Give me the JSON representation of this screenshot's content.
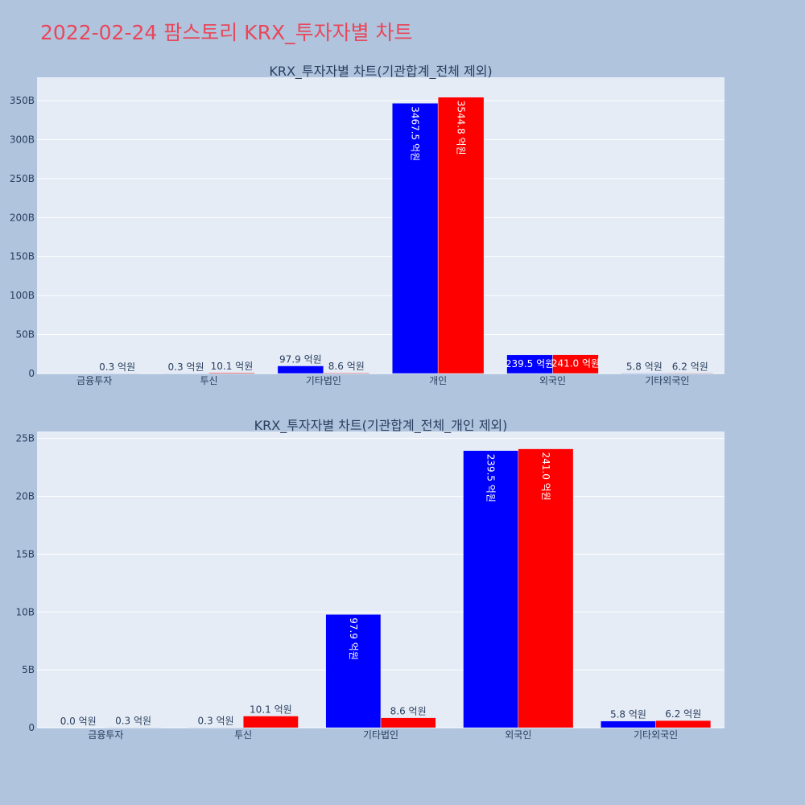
{
  "page_title": "2022-02-24 팜스토리 KRX_투자자별 차트",
  "colors": {
    "background": "#b0c4de",
    "plot_background": "#e5ecf6",
    "grid": "#ffffff",
    "title": "#e8475a",
    "axis_text": "#2a3f5f",
    "series_a": "#0000ff",
    "series_b": "#ff0000"
  },
  "chart_data": [
    {
      "type": "bar",
      "title": "KRX_투자자별 차트(기관합계_전체 제외)",
      "categories": [
        "금융투자",
        "투신",
        "기타법인",
        "개인",
        "외국인",
        "기타외국인"
      ],
      "ylim": [
        0,
        380
      ],
      "yticks": [
        0,
        50,
        100,
        150,
        200,
        250,
        300,
        350
      ],
      "ytick_labels": [
        "0",
        "50B",
        "100B",
        "150B",
        "200B",
        "250B",
        "300B",
        "350B"
      ],
      "grid": true,
      "series": [
        {
          "color": "#0000ff",
          "values": [
            0.0,
            0.03,
            9.79,
            346.75,
            23.95,
            0.58
          ],
          "labels": [
            "",
            "0.3 억원",
            "97.9 억원",
            "3467.5 억원",
            "239.5 억원",
            "5.8 억원"
          ]
        },
        {
          "color": "#ff0000",
          "values": [
            0.03,
            1.01,
            0.86,
            354.48,
            24.1,
            0.62
          ],
          "labels": [
            "0.3 억원",
            "10.1 억원",
            "8.6 억원",
            "3544.8 억원",
            "241.0 억원",
            "6.2 억원"
          ]
        }
      ]
    },
    {
      "type": "bar",
      "title": "KRX_투자자별 차트(기관합계_전체_개인 제외)",
      "categories": [
        "금융투자",
        "투신",
        "기타법인",
        "외국인",
        "기타외국인"
      ],
      "ylim": [
        0,
        25.6
      ],
      "yticks": [
        0,
        5,
        10,
        15,
        20,
        25
      ],
      "ytick_labels": [
        "0",
        "5B",
        "10B",
        "15B",
        "20B",
        "25B"
      ],
      "grid": true,
      "series": [
        {
          "color": "#0000ff",
          "values": [
            0.0,
            0.03,
            9.79,
            23.95,
            0.58
          ],
          "labels": [
            "0.0 억원",
            "0.3 억원",
            "97.9 억원",
            "239.5 억원",
            "5.8 억원"
          ]
        },
        {
          "color": "#ff0000",
          "values": [
            0.03,
            1.01,
            0.86,
            24.1,
            0.62
          ],
          "labels": [
            "0.3 억원",
            "10.1 억원",
            "8.6 억원",
            "241.0 억원",
            "6.2 억원"
          ]
        }
      ]
    }
  ]
}
